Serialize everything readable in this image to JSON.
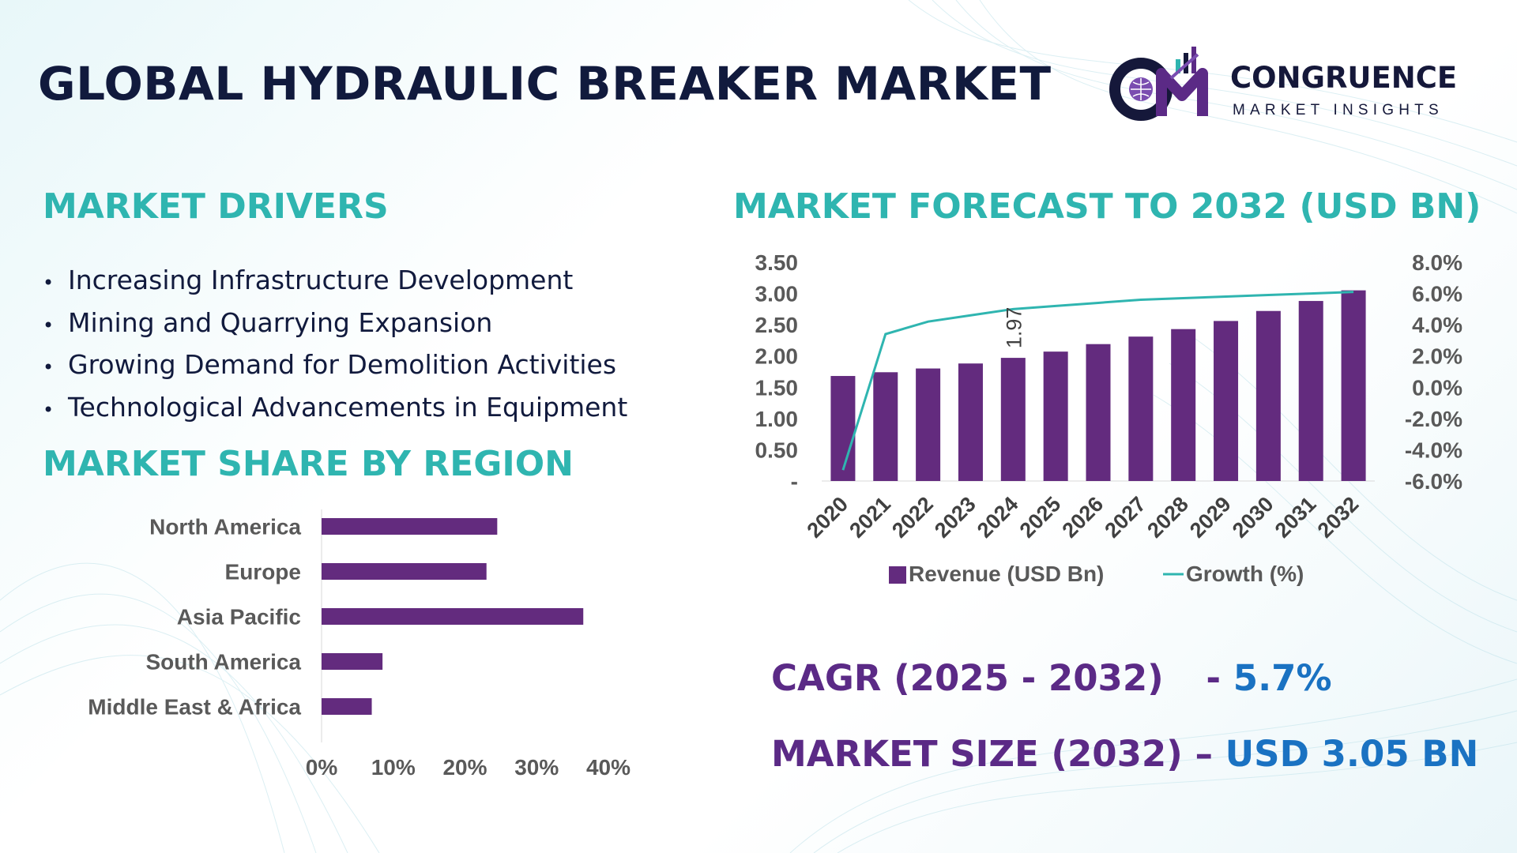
{
  "title": "GLOBAL HYDRAULIC BREAKER MARKET",
  "logo": {
    "name": "CONGRUENCE",
    "tagline": "MARKET INSIGHTS",
    "monogram": "CM"
  },
  "colors": {
    "navy": "#111a3d",
    "teal": "#2fb5b0",
    "purple": "#5b2a86",
    "bar": "#632b7e",
    "blue": "#1a72c2"
  },
  "drivers": {
    "heading": "MARKET DRIVERS",
    "items": [
      "Increasing Infrastructure Development",
      "Mining and Quarrying Expansion",
      "Growing Demand for Demolition Activities",
      "Technological Advancements in Equipment"
    ]
  },
  "region": {
    "heading": "MARKET SHARE BY REGION"
  },
  "forecast": {
    "heading": "MARKET FORECAST TO 2032 (USD BN)"
  },
  "stats": {
    "cagr_label": "CAGR (2025 - 2032)",
    "cagr_sep": "-",
    "cagr_value": "5.7%",
    "size_label": "MARKET SIZE (2032)",
    "size_sep": "–",
    "size_value": "USD 3.05 BN"
  },
  "chart_data": [
    {
      "type": "bar",
      "orientation": "horizontal",
      "title": "MARKET SHARE BY REGION",
      "categories": [
        "North America",
        "Europe",
        "Asia Pacific",
        "South America",
        "Middle East & Africa"
      ],
      "values": [
        0.245,
        0.23,
        0.365,
        0.085,
        0.07
      ],
      "xticks": [
        "0%",
        "10%",
        "20%",
        "30%",
        "40%"
      ],
      "xlim": [
        0,
        0.4
      ],
      "color": "#632b7e"
    },
    {
      "type": "bar",
      "title": "MARKET FORECAST TO 2032 (USD BN)",
      "categories": [
        "2020",
        "2021",
        "2022",
        "2023",
        "2024",
        "2025",
        "2026",
        "2027",
        "2028",
        "2029",
        "2030",
        "2031",
        "2032"
      ],
      "series": [
        {
          "name": "Revenue (USD Bn)",
          "type": "bar",
          "axis": "left",
          "color": "#632b7e",
          "values": [
            1.68,
            1.74,
            1.8,
            1.88,
            1.97,
            2.07,
            2.19,
            2.31,
            2.43,
            2.56,
            2.72,
            2.88,
            3.05
          ]
        },
        {
          "name": "Growth (%)",
          "type": "line",
          "axis": "right",
          "color": "#2fb5b0",
          "values": [
            -5.3,
            3.4,
            4.2,
            4.6,
            5.0,
            5.2,
            5.4,
            5.6,
            5.7,
            5.8,
            5.9,
            6.0,
            6.1
          ]
        }
      ],
      "data_labels": [
        {
          "category": "2024",
          "series": "Revenue (USD Bn)",
          "text": "1.97"
        }
      ],
      "yticks_left": [
        "-",
        "0.50",
        "1.00",
        "1.50",
        "2.00",
        "2.50",
        "3.00",
        "3.50"
      ],
      "ylim_left": [
        0,
        3.5
      ],
      "yticks_right": [
        "-6.0%",
        "-4.0%",
        "-2.0%",
        "0.0%",
        "2.0%",
        "4.0%",
        "6.0%",
        "8.0%"
      ],
      "ylim_right": [
        -6,
        8
      ],
      "legend": "bottom"
    }
  ]
}
